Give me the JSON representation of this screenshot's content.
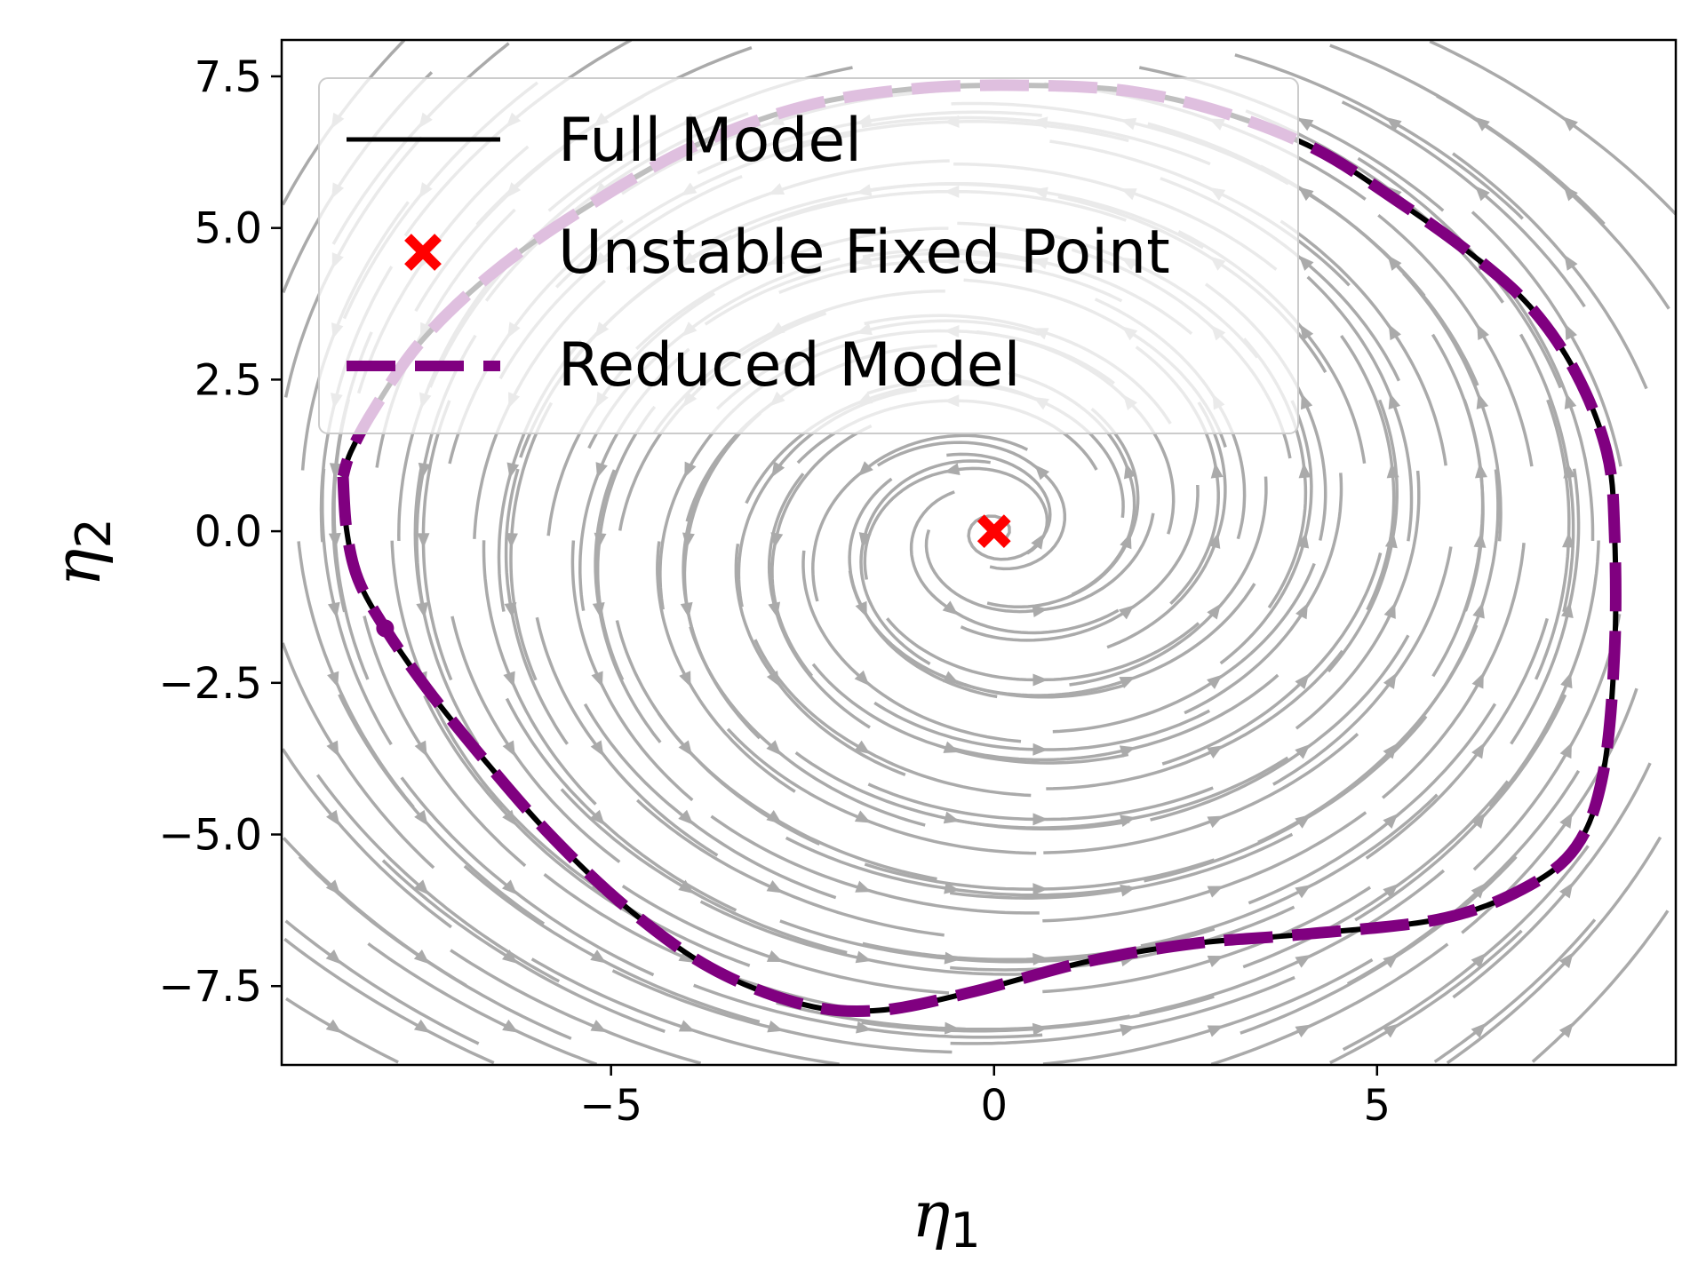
{
  "chart_data": {
    "type": "line",
    "xlabel": "η",
    "xlabel_sub": "1",
    "ylabel": "η",
    "ylabel_sub": "2",
    "xlim": [
      -9.3,
      8.9
    ],
    "ylim": [
      -8.8,
      8.1
    ],
    "x_ticks": [
      -5,
      0,
      5
    ],
    "x_tick_labels": [
      "−5",
      "0",
      "5"
    ],
    "y_ticks": [
      7.5,
      5.0,
      2.5,
      0.0,
      -2.5,
      -5.0,
      -7.5
    ],
    "y_tick_labels": [
      "7.5",
      "5.0",
      "2.5",
      "0.0",
      "−2.5",
      "−5.0",
      "−7.5"
    ],
    "grid": false,
    "legend_position": "top-left",
    "background_field": "streamlines",
    "colors": {
      "full_model": "#000000",
      "reduced_model": "#800080",
      "fixed_point": "#ff0000",
      "streamlines": "#aaaaaa"
    },
    "series": [
      {
        "name": "Full Model",
        "style": "solid",
        "x": [
          -8.5,
          -8.45,
          -8.3,
          -7.95,
          -7.4,
          -6.7,
          -5.8,
          -4.8,
          -3.7,
          -2.5,
          -1.5,
          -0.3,
          1.2,
          2.6,
          4.0,
          5.8,
          6.9,
          7.6,
          7.95,
          8.1,
          8.1,
          8.0,
          7.6,
          7.0,
          6.2,
          5.2,
          4.2,
          3.0,
          1.8,
          0.5,
          -1.0,
          -2.5,
          -4.0,
          -5.5,
          -6.6,
          -7.5,
          -8.1,
          -8.4,
          -8.5
        ],
        "y": [
          0.9,
          0.0,
          -0.8,
          -1.6,
          -2.6,
          -3.7,
          -5.0,
          -6.2,
          -7.2,
          -7.8,
          -7.9,
          -7.6,
          -7.1,
          -6.8,
          -6.65,
          -6.4,
          -5.9,
          -5.2,
          -4.0,
          -2.0,
          0.0,
          1.3,
          2.6,
          3.7,
          4.6,
          5.5,
          6.3,
          6.9,
          7.25,
          7.35,
          7.3,
          7.0,
          6.3,
          5.2,
          4.2,
          3.1,
          2.0,
          1.3,
          0.9
        ]
      },
      {
        "name": "Unstable Fixed Point",
        "style": "marker-x",
        "x": [
          0.0
        ],
        "y": [
          0.0
        ]
      },
      {
        "name": "Reduced Model",
        "style": "dashed",
        "x": [
          -8.5,
          -8.45,
          -8.3,
          -7.95,
          -7.4,
          -6.7,
          -5.8,
          -4.8,
          -3.7,
          -2.5,
          -1.5,
          -0.3,
          1.2,
          2.6,
          4.0,
          5.8,
          6.9,
          7.6,
          7.95,
          8.1,
          8.1,
          8.0,
          7.6,
          7.0,
          6.2,
          5.2,
          4.2,
          3.0,
          1.8,
          0.5,
          -1.0,
          -2.5,
          -4.0,
          -5.5,
          -6.6,
          -7.5,
          -8.1,
          -8.4,
          -8.5
        ],
        "y": [
          0.9,
          0.0,
          -0.8,
          -1.6,
          -2.6,
          -3.7,
          -5.0,
          -6.2,
          -7.2,
          -7.8,
          -7.9,
          -7.6,
          -7.1,
          -6.8,
          -6.65,
          -6.4,
          -5.9,
          -5.2,
          -4.0,
          -2.0,
          0.0,
          1.3,
          2.6,
          3.7,
          4.6,
          5.5,
          6.3,
          6.9,
          7.25,
          7.35,
          7.3,
          7.0,
          6.3,
          5.2,
          4.2,
          3.1,
          2.0,
          1.3,
          0.9
        ]
      }
    ],
    "legend": [
      "Full Model",
      "Unstable Fixed Point",
      "Reduced Model"
    ]
  }
}
